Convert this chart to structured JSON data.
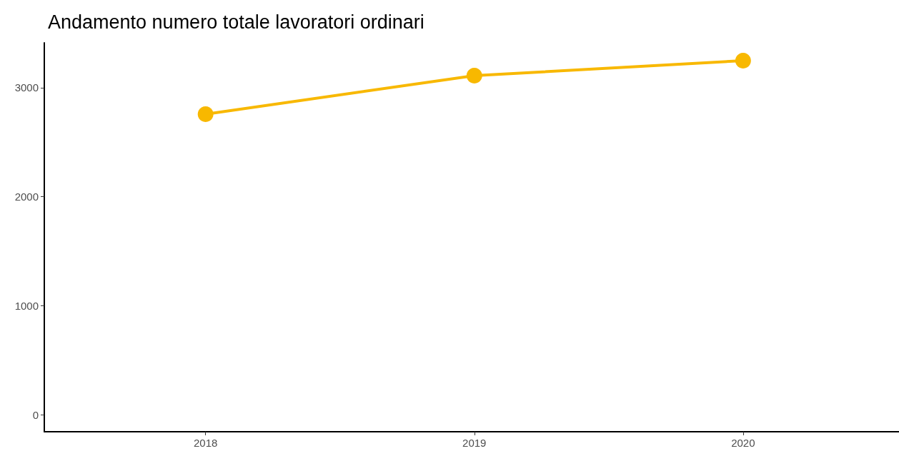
{
  "chart_data": {
    "type": "line",
    "title": "Andamento numero totale lavoratori ordinari",
    "x": [
      2018,
      2019,
      2020
    ],
    "series": [
      {
        "color": "#f8b800",
        "values": [
          2757,
          3111,
          3248
        ]
      }
    ],
    "xlim": [
      2017.4,
      2020.58
    ],
    "xticks": [
      2018,
      2019,
      2020
    ],
    "ylim": [
      -157,
      3412
    ],
    "yticks": [
      0,
      1000,
      2000,
      3000
    ],
    "grid": false,
    "marker": "circle",
    "line_style": "solid"
  }
}
